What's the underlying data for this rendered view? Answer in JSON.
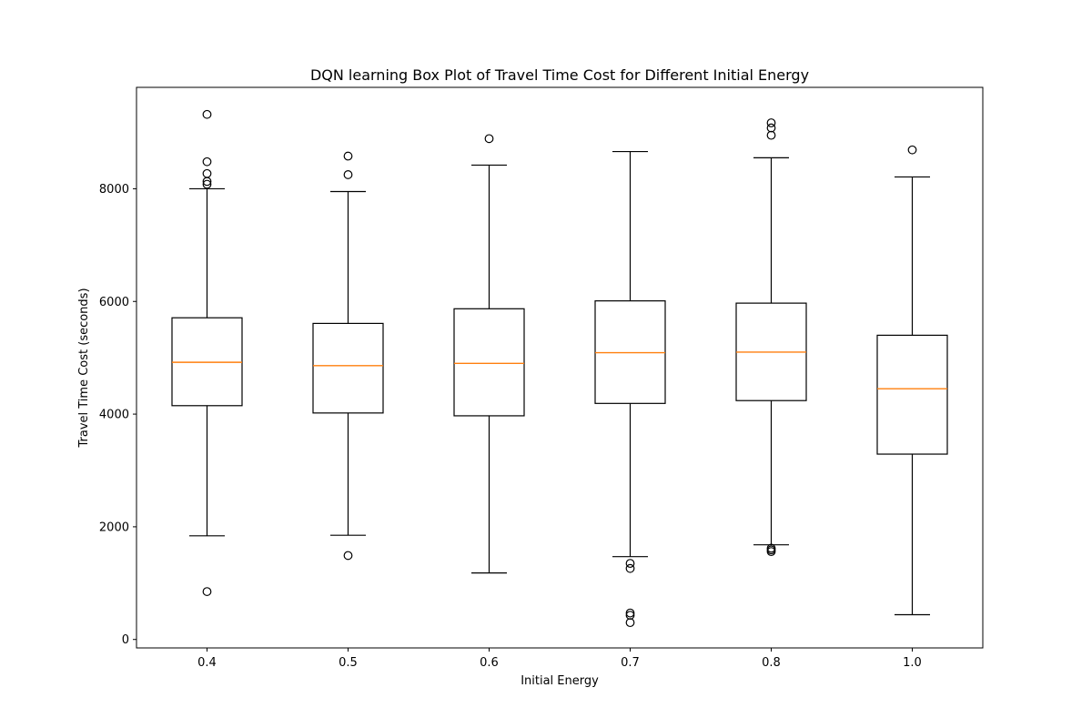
{
  "chart_data": {
    "type": "box",
    "title": "DQN learning Box Plot of Travel Time Cost for Different Initial Energy",
    "xlabel": "Initial Energy",
    "ylabel": "Travel Time Cost (seconds)",
    "categories": [
      "0.4",
      "0.5",
      "0.6",
      "0.7",
      "0.8",
      "1.0"
    ],
    "ylim": [
      -150,
      9800
    ],
    "yticks": [
      0,
      2000,
      4000,
      6000,
      8000
    ],
    "ytick_labels": [
      "0",
      "2000",
      "4000",
      "6000",
      "8000"
    ],
    "grid": false,
    "legend": "none",
    "colors": {
      "box": "#000000",
      "median": "#ff7f0e",
      "flier": "#000000",
      "background": "#ffffff"
    },
    "boxes": [
      {
        "category": "0.4",
        "whisker_low": 1840,
        "q1": 4150,
        "median": 4920,
        "q3": 5710,
        "whisker_high": 8000,
        "outliers": [
          850,
          8080,
          8130,
          8270,
          8480,
          9320
        ]
      },
      {
        "category": "0.5",
        "whisker_low": 1850,
        "q1": 4020,
        "median": 4860,
        "q3": 5610,
        "whisker_high": 7950,
        "outliers": [
          1490,
          8250,
          8580
        ]
      },
      {
        "category": "0.6",
        "whisker_low": 1180,
        "q1": 3970,
        "median": 4900,
        "q3": 5870,
        "whisker_high": 8420,
        "outliers": [
          8890
        ]
      },
      {
        "category": "0.7",
        "whisker_low": 1470,
        "q1": 4190,
        "median": 5090,
        "q3": 6010,
        "whisker_high": 8660,
        "outliers": [
          1260,
          1350,
          300,
          430,
          470
        ]
      },
      {
        "category": "0.8",
        "whisker_low": 1680,
        "q1": 4240,
        "median": 5100,
        "q3": 5970,
        "whisker_high": 8550,
        "outliers": [
          1560,
          1590,
          1620,
          8950,
          9080,
          9170
        ]
      },
      {
        "category": "1.0",
        "whisker_low": 440,
        "q1": 3290,
        "median": 4450,
        "q3": 5400,
        "whisker_high": 8210,
        "outliers": [
          8690
        ]
      }
    ]
  }
}
